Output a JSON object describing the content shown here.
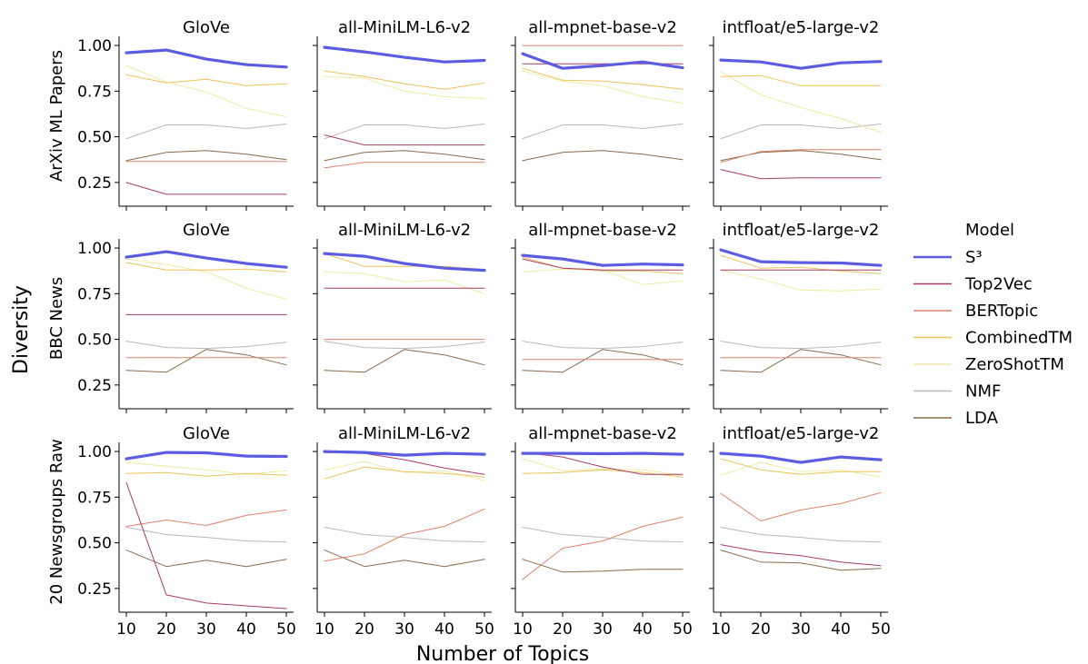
{
  "figure": {
    "ylabel": "Diversity",
    "xlabel": "Number of Topics",
    "legend_title": "Model"
  },
  "chart_data": {
    "type": "line",
    "x": [
      10,
      20,
      30,
      40,
      50
    ],
    "xticks": [
      "10",
      "20",
      "30",
      "40",
      "50"
    ],
    "yticks": [
      "0.25",
      "0.50",
      "0.75",
      "1.00"
    ],
    "ylim": [
      0.12,
      1.05
    ],
    "grid": false,
    "legend_position": "right",
    "models": [
      {
        "name": "S³",
        "color": "#5b5ce2",
        "width": 3.2
      },
      {
        "name": "Top2Vec",
        "color": "#a83a6e",
        "width": 1.0
      },
      {
        "name": "BERTopic",
        "color": "#e0826c",
        "width": 1.0
      },
      {
        "name": "CombinedTM",
        "color": "#ecc45a",
        "width": 1.0
      },
      {
        "name": "ZeroShotTM",
        "color": "#efeaa4",
        "width": 1.0
      },
      {
        "name": "NMF",
        "color": "#bdb6c0",
        "width": 1.0
      },
      {
        "name": "LDA",
        "color": "#8a6a4a",
        "width": 1.0
      }
    ],
    "rows": [
      {
        "dataset": "ArXiv ML Papers",
        "panels": [
          {
            "title": "GloVe",
            "series": [
              [
                0.96,
                0.975,
                0.925,
                0.895,
                0.882
              ],
              [
                0.25,
                0.185,
                0.185,
                0.185,
                0.185
              ],
              [
                0.365,
                0.365,
                0.365,
                0.365,
                0.365
              ],
              [
                0.84,
                0.795,
                0.815,
                0.78,
                0.79
              ],
              [
                0.89,
                0.8,
                0.745,
                0.655,
                0.61
              ],
              [
                0.49,
                0.565,
                0.565,
                0.545,
                0.57
              ],
              [
                0.37,
                0.415,
                0.425,
                0.405,
                0.375
              ]
            ]
          },
          {
            "title": "all-MiniLM-L6-v2",
            "series": [
              [
                0.99,
                0.965,
                0.935,
                0.91,
                0.918
              ],
              [
                0.51,
                0.455,
                0.455,
                0.455,
                0.455
              ],
              [
                0.33,
                0.36,
                0.36,
                0.36,
                0.36
              ],
              [
                0.86,
                0.83,
                0.79,
                0.76,
                0.795
              ],
              [
                0.83,
                0.82,
                0.75,
                0.72,
                0.71
              ],
              [
                0.49,
                0.565,
                0.565,
                0.545,
                0.57
              ],
              [
                0.37,
                0.415,
                0.425,
                0.405,
                0.375
              ]
            ]
          },
          {
            "title": "all-mpnet-base-v2",
            "series": [
              [
                0.955,
                0.875,
                0.89,
                0.91,
                0.878
              ],
              [
                0.9,
                0.9,
                0.9,
                0.9,
                0.9
              ],
              [
                1.0,
                1.0,
                1.0,
                1.0,
                1.0
              ],
              [
                0.875,
                0.81,
                0.805,
                0.785,
                0.76
              ],
              [
                0.86,
                0.805,
                0.78,
                0.72,
                0.685
              ],
              [
                0.49,
                0.565,
                0.565,
                0.545,
                0.57
              ],
              [
                0.37,
                0.415,
                0.425,
                0.405,
                0.375
              ]
            ]
          },
          {
            "title": "intfloat/e5-large-v2",
            "series": [
              [
                0.92,
                0.91,
                0.875,
                0.905,
                0.912
              ],
              [
                0.32,
                0.27,
                0.275,
                0.275,
                0.275
              ],
              [
                0.36,
                0.42,
                0.43,
                0.43,
                0.43
              ],
              [
                0.83,
                0.835,
                0.78,
                0.78,
                0.78
              ],
              [
                0.855,
                0.73,
                0.66,
                0.6,
                0.525
              ],
              [
                0.49,
                0.565,
                0.565,
                0.545,
                0.57
              ],
              [
                0.37,
                0.415,
                0.425,
                0.405,
                0.375
              ]
            ]
          }
        ]
      },
      {
        "dataset": "BBC News",
        "panels": [
          {
            "title": "GloVe",
            "series": [
              [
                0.95,
                0.98,
                0.945,
                0.915,
                0.895
              ],
              [
                0.635,
                0.635,
                0.635,
                0.635,
                0.635
              ],
              [
                0.4,
                0.4,
                0.4,
                0.4,
                0.4
              ],
              [
                0.92,
                0.88,
                0.88,
                0.885,
                0.87
              ],
              [
                0.94,
                0.91,
                0.87,
                0.78,
                0.72
              ],
              [
                0.49,
                0.455,
                0.45,
                0.46,
                0.485
              ],
              [
                0.33,
                0.32,
                0.445,
                0.415,
                0.36
              ]
            ]
          },
          {
            "title": "all-MiniLM-L6-v2",
            "series": [
              [
                0.97,
                0.955,
                0.915,
                0.89,
                0.878
              ],
              [
                0.78,
                0.78,
                0.78,
                0.78,
                0.78
              ],
              [
                0.5,
                0.5,
                0.5,
                0.5,
                0.5
              ],
              [
                0.97,
                0.9,
                0.9,
                0.9,
                0.88
              ],
              [
                0.87,
                0.86,
                0.815,
                0.825,
                0.75
              ],
              [
                0.49,
                0.455,
                0.45,
                0.46,
                0.485
              ],
              [
                0.33,
                0.32,
                0.445,
                0.415,
                0.36
              ]
            ]
          },
          {
            "title": "all-mpnet-base-v2",
            "series": [
              [
                0.96,
                0.94,
                0.905,
                0.912,
                0.908
              ],
              [
                0.94,
                0.89,
                0.88,
                0.88,
                0.88
              ],
              [
                0.39,
                0.39,
                0.39,
                0.39,
                0.39
              ],
              [
                0.95,
                0.89,
                0.875,
                0.875,
                0.86
              ],
              [
                0.87,
                0.885,
                0.88,
                0.8,
                0.82
              ],
              [
                0.49,
                0.455,
                0.45,
                0.46,
                0.485
              ],
              [
                0.33,
                0.32,
                0.445,
                0.415,
                0.36
              ]
            ]
          },
          {
            "title": "intfloat/e5-large-v2",
            "series": [
              [
                0.99,
                0.925,
                0.92,
                0.918,
                0.905
              ],
              [
                0.88,
                0.88,
                0.88,
                0.88,
                0.88
              ],
              [
                0.4,
                0.4,
                0.4,
                0.4,
                0.4
              ],
              [
                0.96,
                0.89,
                0.895,
                0.875,
                0.86
              ],
              [
                0.88,
                0.83,
                0.77,
                0.765,
                0.775
              ],
              [
                0.49,
                0.455,
                0.45,
                0.46,
                0.485
              ],
              [
                0.33,
                0.32,
                0.445,
                0.415,
                0.36
              ]
            ]
          }
        ]
      },
      {
        "dataset": "20 Newsgroups Raw",
        "panels": [
          {
            "title": "GloVe",
            "series": [
              [
                0.96,
                0.995,
                0.993,
                0.975,
                0.973
              ],
              [
                0.83,
                0.215,
                0.17,
                0.155,
                0.14
              ],
              [
                0.59,
                0.625,
                0.595,
                0.65,
                0.68
              ],
              [
                0.88,
                0.885,
                0.865,
                0.88,
                0.87
              ],
              [
                0.94,
                0.92,
                0.9,
                0.875,
                0.895
              ],
              [
                0.585,
                0.545,
                0.53,
                0.51,
                0.505
              ],
              [
                0.46,
                0.37,
                0.405,
                0.37,
                0.41
              ]
            ]
          },
          {
            "title": "all-MiniLM-L6-v2",
            "series": [
              [
                1.0,
                0.995,
                0.98,
                0.99,
                0.985
              ],
              [
                0.995,
                0.99,
                0.955,
                0.91,
                0.875
              ],
              [
                0.4,
                0.44,
                0.545,
                0.59,
                0.685
              ],
              [
                0.85,
                0.915,
                0.89,
                0.88,
                0.86
              ],
              [
                0.9,
                0.945,
                0.885,
                0.895,
                0.84
              ],
              [
                0.585,
                0.545,
                0.53,
                0.51,
                0.505
              ],
              [
                0.46,
                0.37,
                0.405,
                0.37,
                0.41
              ]
            ]
          },
          {
            "title": "all-mpnet-base-v2",
            "series": [
              [
                0.99,
                0.99,
                0.988,
                0.99,
                0.985
              ],
              [
                0.995,
                0.97,
                0.915,
                0.875,
                0.875
              ],
              [
                0.3,
                0.47,
                0.51,
                0.59,
                0.64
              ],
              [
                0.88,
                0.885,
                0.9,
                0.885,
                0.86
              ],
              [
                0.96,
                0.895,
                0.905,
                0.9,
                0.87
              ],
              [
                0.585,
                0.545,
                0.53,
                0.51,
                0.505
              ],
              [
                0.41,
                0.34,
                0.345,
                0.355,
                0.355
              ]
            ]
          },
          {
            "title": "intfloat/e5-large-v2",
            "series": [
              [
                0.99,
                0.975,
                0.94,
                0.97,
                0.955
              ],
              [
                0.49,
                0.45,
                0.43,
                0.395,
                0.375
              ],
              [
                0.77,
                0.62,
                0.68,
                0.715,
                0.775
              ],
              [
                0.96,
                0.9,
                0.875,
                0.89,
                0.89
              ],
              [
                0.87,
                0.94,
                0.89,
                0.9,
                0.86
              ],
              [
                0.585,
                0.545,
                0.53,
                0.51,
                0.505
              ],
              [
                0.46,
                0.395,
                0.39,
                0.35,
                0.36
              ]
            ]
          }
        ]
      }
    ]
  }
}
